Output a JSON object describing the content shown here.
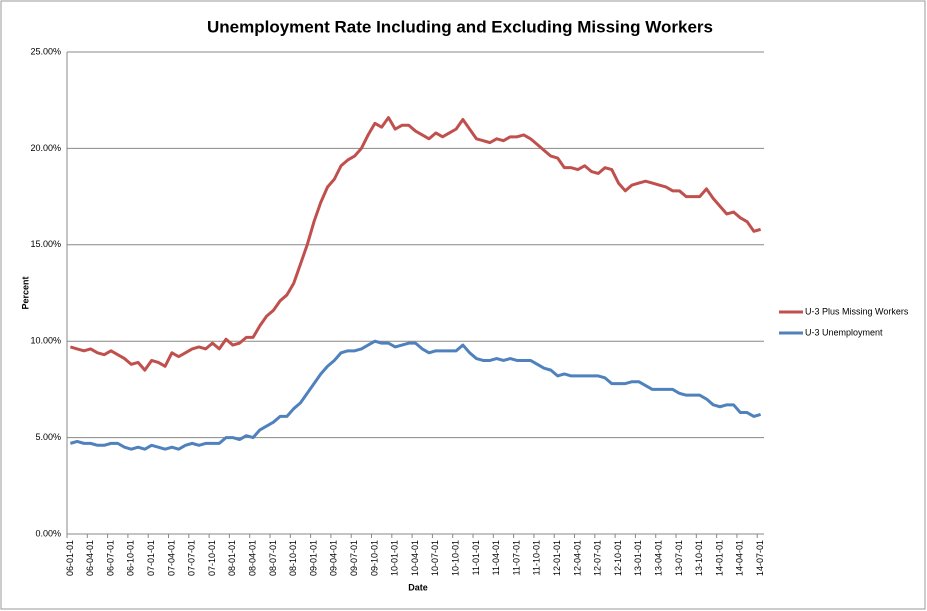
{
  "chart_data": {
    "type": "line",
    "title": "Unemployment Rate Including and Excluding Missing Workers",
    "x_label": "Date",
    "y_label": "Percent",
    "categories": [
      "06-01-01",
      null,
      null,
      "06-04-01",
      null,
      null,
      "06-07-01",
      null,
      null,
      "06-10-01",
      null,
      null,
      "07-01-01",
      null,
      null,
      "07-04-01",
      null,
      null,
      "07-07-01",
      null,
      null,
      "07-10-01",
      null,
      null,
      "08-01-01",
      null,
      null,
      "08-04-01",
      null,
      null,
      "08-07-01",
      null,
      null,
      "08-10-01",
      null,
      null,
      "09-01-01",
      null,
      null,
      "09-04-01",
      null,
      null,
      "09-07-01",
      null,
      null,
      "09-10-01",
      null,
      null,
      "10-01-01",
      null,
      null,
      "10-04-01",
      null,
      null,
      "10-07-01",
      null,
      null,
      "10-10-01",
      null,
      null,
      "11-01-01",
      null,
      null,
      "11-04-01",
      null,
      null,
      "11-07-01",
      null,
      null,
      "11-10-01",
      null,
      null,
      "12-01-01",
      null,
      null,
      "12-04-01",
      null,
      null,
      "12-07-01",
      null,
      null,
      "12-10-01",
      null,
      null,
      "13-01-01",
      null,
      null,
      "13-04-01",
      null,
      null,
      "13-07-01",
      null,
      null,
      "13-10-01",
      null,
      null,
      "14-01-01",
      null,
      null,
      "14-04-01",
      null,
      null,
      "14-07-01"
    ],
    "series": [
      {
        "name": "U-3 Plus Missing Workers",
        "color": "#c0504d",
        "values": [
          9.7,
          9.6,
          9.5,
          9.6,
          9.4,
          9.3,
          9.5,
          9.3,
          9.1,
          8.8,
          8.9,
          8.5,
          9.0,
          8.9,
          8.7,
          9.4,
          9.2,
          9.4,
          9.6,
          9.7,
          9.6,
          9.9,
          9.6,
          10.1,
          9.8,
          9.9,
          10.2,
          10.2,
          10.8,
          11.3,
          11.6,
          12.1,
          12.4,
          13.0,
          14.0,
          15.0,
          16.2,
          17.2,
          18.0,
          18.4,
          19.1,
          19.4,
          19.6,
          20.0,
          20.7,
          21.3,
          21.1,
          21.6,
          21.0,
          21.2,
          21.2,
          20.9,
          20.7,
          20.5,
          20.8,
          20.6,
          20.8,
          21.0,
          21.5,
          21.0,
          20.5,
          20.4,
          20.3,
          20.5,
          20.4,
          20.6,
          20.6,
          20.7,
          20.5,
          20.2,
          19.9,
          19.6,
          19.5,
          19.0,
          19.0,
          18.9,
          19.1,
          18.8,
          18.7,
          19.0,
          18.9,
          18.2,
          17.8,
          18.1,
          18.2,
          18.3,
          18.2,
          18.1,
          18.0,
          17.8,
          17.8,
          17.5,
          17.5,
          17.5,
          17.9,
          17.4,
          17.0,
          16.6,
          16.7,
          16.4,
          16.2,
          15.7,
          15.8
        ]
      },
      {
        "name": "U-3 Unemployment",
        "color": "#4f81bd",
        "values": [
          4.7,
          4.8,
          4.7,
          4.7,
          4.6,
          4.6,
          4.7,
          4.7,
          4.5,
          4.4,
          4.5,
          4.4,
          4.6,
          4.5,
          4.4,
          4.5,
          4.4,
          4.6,
          4.7,
          4.6,
          4.7,
          4.7,
          4.7,
          5.0,
          5.0,
          4.9,
          5.1,
          5.0,
          5.4,
          5.6,
          5.8,
          6.1,
          6.1,
          6.5,
          6.8,
          7.3,
          7.8,
          8.3,
          8.7,
          9.0,
          9.4,
          9.5,
          9.5,
          9.6,
          9.8,
          10.0,
          9.9,
          9.9,
          9.7,
          9.8,
          9.9,
          9.9,
          9.6,
          9.4,
          9.5,
          9.5,
          9.5,
          9.5,
          9.8,
          9.4,
          9.1,
          9.0,
          9.0,
          9.1,
          9.0,
          9.1,
          9.0,
          9.0,
          9.0,
          8.8,
          8.6,
          8.5,
          8.2,
          8.3,
          8.2,
          8.2,
          8.2,
          8.2,
          8.2,
          8.1,
          7.8,
          7.8,
          7.8,
          7.9,
          7.9,
          7.7,
          7.5,
          7.5,
          7.5,
          7.5,
          7.3,
          7.2,
          7.2,
          7.2,
          7.0,
          6.7,
          6.6,
          6.7,
          6.7,
          6.3,
          6.3,
          6.1,
          6.2
        ]
      }
    ],
    "ylim": [
      0,
      25
    ],
    "yticks": [
      {
        "value": 0,
        "label": "0.00%"
      },
      {
        "value": 5,
        "label": "5.00%"
      },
      {
        "value": 10,
        "label": "10.00%"
      },
      {
        "value": 15,
        "label": "15.00%"
      },
      {
        "value": 20,
        "label": "20.00%"
      },
      {
        "value": 25,
        "label": "25.00%"
      }
    ],
    "grid": true,
    "legend": "right"
  }
}
